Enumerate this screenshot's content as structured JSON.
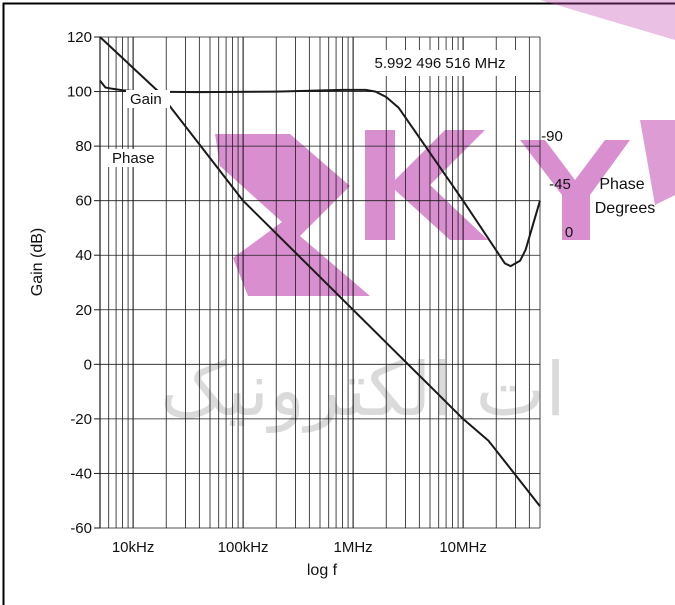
{
  "chart_data": {
    "type": "line",
    "xlabel": "log f",
    "ylabel": "Gain (dB)",
    "x_scale": "log",
    "xlim": [
      5000,
      50000000
    ],
    "ylim": [
      -60,
      120
    ],
    "x_ticks": [
      {
        "value": 10000,
        "label": "10kHz"
      },
      {
        "value": 100000,
        "label": "100kHz"
      },
      {
        "value": 1000000,
        "label": "1MHz"
      },
      {
        "value": 10000000,
        "label": "10MHz"
      }
    ],
    "y_ticks": [
      120,
      100,
      80,
      60,
      40,
      20,
      0,
      -20,
      -40,
      -60
    ],
    "grid": {
      "x_minor_log": true,
      "y_major": true
    },
    "annotation": "5.992 496 516 MHz",
    "secondary_axis": {
      "label": "Phase Degrees",
      "label_lines": [
        "Phase",
        "Degrees"
      ],
      "ticks": [
        {
          "label": "-90",
          "at_gain": 100
        },
        {
          "label": "-45",
          "at_gain": 80
        },
        {
          "label": "0",
          "at_gain": 60
        }
      ]
    },
    "series": [
      {
        "name": "Gain",
        "x": [
          5000,
          17000,
          100000,
          1000000,
          10000000,
          17000000,
          50000000
        ],
        "y": [
          120,
          100,
          60,
          20,
          -20,
          -28,
          -52
        ]
      },
      {
        "name": "Phase",
        "x": [
          5000,
          5600,
          6500,
          8000,
          12000,
          40000,
          200000,
          800000,
          1300000,
          1600000,
          2000000,
          2600000,
          10000000,
          24000000,
          27000000,
          33000000,
          37000000,
          50000000
        ],
        "y": [
          104,
          101.5,
          101,
          100.5,
          100,
          99.8,
          100,
          100.6,
          100.6,
          100,
          98,
          94,
          60,
          37,
          36,
          38,
          42,
          60
        ]
      }
    ]
  },
  "watermark": {
    "brand_text": "SKY",
    "arabic_text": "ات الکترونیک",
    "color_brand": "#c24bb1",
    "color_text": "#b9b9b9"
  },
  "colors": {
    "line": "#1a1a1a",
    "grid": "#1a1a1a",
    "frame": "#000000"
  }
}
